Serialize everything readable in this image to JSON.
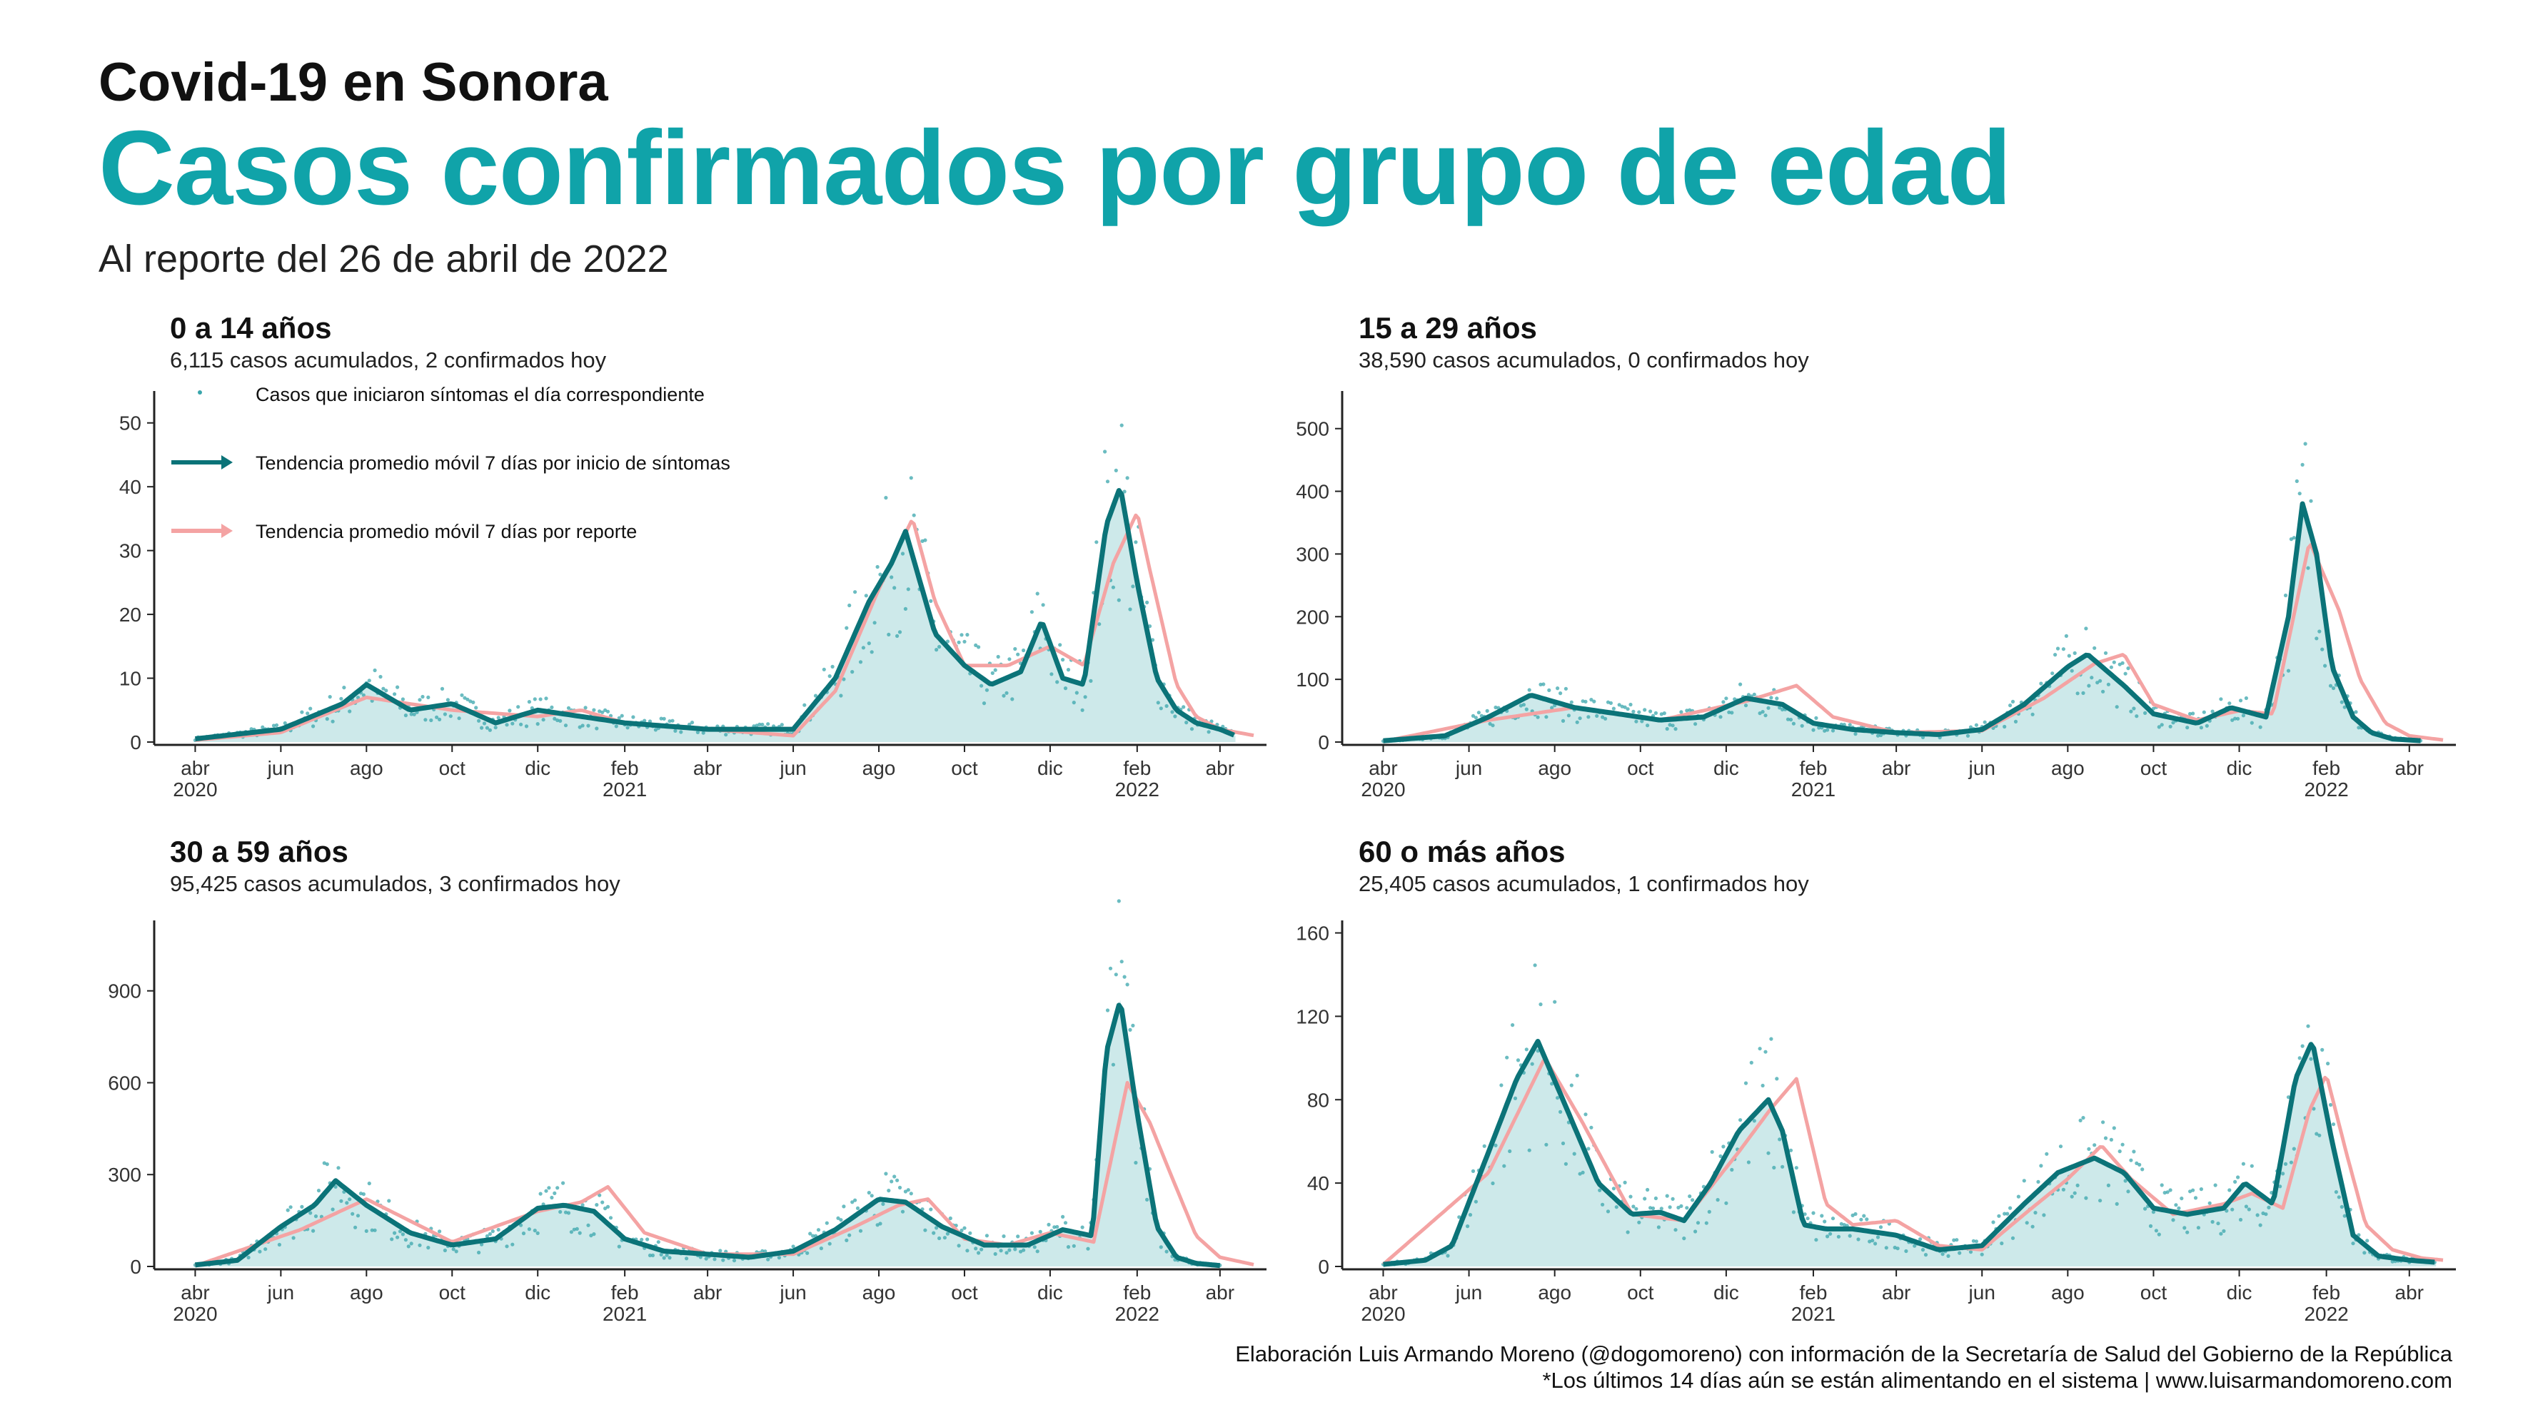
{
  "header": {
    "kicker": "Covid-19 en Sonora",
    "title": "Casos confirmados por grupo de edad",
    "subtitle": "Al reporte del 26 de abril de 2022"
  },
  "legend": {
    "points": "Casos que iniciaron síntomas el día correspondiente",
    "onset": "Tendencia promedio móvil 7 días por inicio de síntomas",
    "report": "Tendencia promedio móvil 7 días por reporte"
  },
  "colors": {
    "accent": "#10a3a9",
    "onset_line": "#0b7378",
    "report_line": "#f4a3a3",
    "area_fill": "#cde9ea",
    "points": "#3aa6ac"
  },
  "x_axis": {
    "ticks": [
      {
        "date": "2020-04-01",
        "label": "abr",
        "year": "2020"
      },
      {
        "date": "2020-06-01",
        "label": "jun",
        "year": ""
      },
      {
        "date": "2020-08-01",
        "label": "ago",
        "year": ""
      },
      {
        "date": "2020-10-01",
        "label": "oct",
        "year": ""
      },
      {
        "date": "2020-12-01",
        "label": "dic",
        "year": ""
      },
      {
        "date": "2021-02-01",
        "label": "feb",
        "year": "2021"
      },
      {
        "date": "2021-04-01",
        "label": "abr",
        "year": ""
      },
      {
        "date": "2021-06-01",
        "label": "jun",
        "year": ""
      },
      {
        "date": "2021-08-01",
        "label": "ago",
        "year": ""
      },
      {
        "date": "2021-10-01",
        "label": "oct",
        "year": ""
      },
      {
        "date": "2021-12-01",
        "label": "dic",
        "year": ""
      },
      {
        "date": "2022-02-01",
        "label": "feb",
        "year": "2022"
      },
      {
        "date": "2022-04-01",
        "label": "abr",
        "year": ""
      }
    ],
    "range": [
      "2020-03-15",
      "2022-04-26"
    ]
  },
  "chart_data": [
    {
      "type": "line",
      "title": "0 a 14 años",
      "subtitle": "6,115 casos acumulados, 2 confirmados hoy",
      "ylim": [
        0,
        55
      ],
      "yticks": [
        0,
        10,
        20,
        30,
        40,
        50
      ],
      "series": [
        {
          "name": "Tendencia promedio móvil 7 días por inicio de síntomas",
          "x": [
            "2020-04-01",
            "2020-06-01",
            "2020-07-15",
            "2020-08-01",
            "2020-09-01",
            "2020-10-01",
            "2020-11-01",
            "2020-12-01",
            "2021-01-01",
            "2021-02-01",
            "2021-04-01",
            "2021-06-01",
            "2021-07-01",
            "2021-07-25",
            "2021-08-10",
            "2021-08-20",
            "2021-09-10",
            "2021-10-01",
            "2021-10-20",
            "2021-11-10",
            "2021-11-25",
            "2021-12-10",
            "2021-12-25",
            "2022-01-10",
            "2022-01-20",
            "2022-02-01",
            "2022-02-15",
            "2022-03-01",
            "2022-03-15",
            "2022-04-01",
            "2022-04-12"
          ],
          "y": [
            0.5,
            2,
            6,
            9,
            5,
            6,
            3,
            5,
            4,
            3,
            2,
            2,
            10,
            22,
            28,
            33,
            17,
            12,
            9,
            11,
            19,
            10,
            9,
            34,
            40,
            25,
            10,
            5,
            3,
            2,
            1
          ]
        },
        {
          "name": "Tendencia promedio móvil 7 días por reporte",
          "x": [
            "2020-04-01",
            "2020-06-01",
            "2020-08-01",
            "2020-10-01",
            "2020-12-01",
            "2021-01-01",
            "2021-02-01",
            "2021-04-01",
            "2021-06-01",
            "2021-07-01",
            "2021-08-01",
            "2021-08-25",
            "2021-09-10",
            "2021-10-01",
            "2021-11-01",
            "2021-12-01",
            "2021-12-25",
            "2022-01-15",
            "2022-02-01",
            "2022-02-10",
            "2022-03-01",
            "2022-03-15",
            "2022-04-01",
            "2022-04-26"
          ],
          "y": [
            0.3,
            1.5,
            7,
            5,
            4,
            5,
            3,
            2,
            1,
            8,
            24,
            35,
            22,
            12,
            12,
            15,
            12,
            28,
            36,
            27,
            9,
            4,
            2,
            1
          ]
        }
      ]
    },
    {
      "type": "line",
      "title": "15 a 29 años",
      "subtitle": "38,590 casos acumulados, 0 confirmados hoy",
      "ylim": [
        0,
        560
      ],
      "yticks": [
        0,
        100,
        200,
        300,
        400,
        500
      ],
      "series": [
        {
          "name": "Tendencia promedio móvil 7 días por inicio de síntomas",
          "x": [
            "2020-04-01",
            "2020-05-15",
            "2020-06-15",
            "2020-07-15",
            "2020-08-15",
            "2020-09-15",
            "2020-10-15",
            "2020-11-15",
            "2020-12-15",
            "2021-01-10",
            "2021-02-01",
            "2021-03-01",
            "2021-04-01",
            "2021-05-01",
            "2021-06-01",
            "2021-07-01",
            "2021-08-01",
            "2021-08-15",
            "2021-09-10",
            "2021-10-01",
            "2021-11-01",
            "2021-11-25",
            "2021-12-20",
            "2022-01-05",
            "2022-01-15",
            "2022-01-25",
            "2022-02-05",
            "2022-02-20",
            "2022-03-05",
            "2022-03-20",
            "2022-04-10"
          ],
          "y": [
            2,
            10,
            40,
            75,
            55,
            45,
            35,
            40,
            70,
            60,
            30,
            20,
            15,
            12,
            20,
            60,
            120,
            140,
            90,
            45,
            30,
            55,
            40,
            200,
            380,
            300,
            120,
            40,
            15,
            5,
            2
          ]
        },
        {
          "name": "Tendencia promedio móvil 7 días por reporte",
          "x": [
            "2020-04-01",
            "2020-06-15",
            "2020-08-15",
            "2020-10-15",
            "2020-12-15",
            "2021-01-20",
            "2021-02-15",
            "2021-04-01",
            "2021-06-01",
            "2021-07-15",
            "2021-08-20",
            "2021-09-10",
            "2021-10-01",
            "2021-11-01",
            "2021-12-01",
            "2021-12-25",
            "2022-01-20",
            "2022-02-10",
            "2022-02-25",
            "2022-03-15",
            "2022-04-01",
            "2022-04-26"
          ],
          "y": [
            1,
            35,
            55,
            35,
            65,
            90,
            40,
            15,
            18,
            70,
            125,
            140,
            60,
            35,
            50,
            45,
            320,
            210,
            100,
            30,
            10,
            3
          ]
        }
      ]
    },
    {
      "type": "line",
      "title": "30 a 59 años",
      "subtitle": "95,425 casos acumulados, 3 confirmados hoy",
      "ylim": [
        0,
        1130
      ],
      "yticks": [
        0,
        300,
        600,
        900
      ],
      "series": [
        {
          "name": "Tendencia promedio móvil 7 días por inicio de síntomas",
          "x": [
            "2020-04-01",
            "2020-05-01",
            "2020-06-01",
            "2020-06-25",
            "2020-07-10",
            "2020-08-01",
            "2020-09-01",
            "2020-10-01",
            "2020-11-01",
            "2020-12-01",
            "2020-12-20",
            "2021-01-10",
            "2021-02-01",
            "2021-03-01",
            "2021-04-01",
            "2021-05-01",
            "2021-06-01",
            "2021-07-01",
            "2021-08-01",
            "2021-08-20",
            "2021-09-15",
            "2021-10-15",
            "2021-11-15",
            "2021-12-10",
            "2021-12-31",
            "2022-01-10",
            "2022-01-20",
            "2022-02-01",
            "2022-02-15",
            "2022-03-01",
            "2022-03-15",
            "2022-04-01"
          ],
          "y": [
            5,
            20,
            130,
            200,
            280,
            200,
            110,
            70,
            90,
            190,
            200,
            180,
            90,
            50,
            40,
            30,
            50,
            120,
            220,
            210,
            130,
            70,
            70,
            120,
            100,
            700,
            870,
            500,
            130,
            30,
            10,
            3
          ]
        },
        {
          "name": "Tendencia promedio móvil 7 días por reporte",
          "x": [
            "2020-04-01",
            "2020-06-15",
            "2020-08-01",
            "2020-10-01",
            "2020-12-01",
            "2021-01-01",
            "2021-01-20",
            "2021-02-15",
            "2021-04-01",
            "2021-06-01",
            "2021-07-15",
            "2021-08-15",
            "2021-09-05",
            "2021-10-01",
            "2021-11-01",
            "2021-12-01",
            "2022-01-01",
            "2022-01-25",
            "2022-02-10",
            "2022-02-25",
            "2022-03-15",
            "2022-04-01",
            "2022-04-26"
          ],
          "y": [
            2,
            120,
            220,
            80,
            180,
            210,
            260,
            110,
            40,
            40,
            130,
            200,
            220,
            90,
            70,
            110,
            80,
            600,
            470,
            300,
            100,
            30,
            5
          ]
        }
      ]
    },
    {
      "type": "line",
      "title": "60 o más años",
      "subtitle": "25,405 casos acumulados, 1 confirmados hoy",
      "ylim": [
        0,
        166
      ],
      "yticks": [
        0,
        40,
        80,
        120,
        160
      ],
      "series": [
        {
          "name": "Tendencia promedio móvil 7 días por inicio de síntomas",
          "x": [
            "2020-04-01",
            "2020-05-01",
            "2020-05-20",
            "2020-06-15",
            "2020-07-05",
            "2020-07-20",
            "2020-08-10",
            "2020-09-01",
            "2020-09-25",
            "2020-10-15",
            "2020-11-01",
            "2020-11-20",
            "2020-12-10",
            "2020-12-31",
            "2021-01-10",
            "2021-01-25",
            "2021-02-10",
            "2021-03-01",
            "2021-04-01",
            "2021-05-01",
            "2021-06-01",
            "2021-07-01",
            "2021-07-25",
            "2021-08-20",
            "2021-09-10",
            "2021-10-01",
            "2021-10-25",
            "2021-11-20",
            "2021-12-05",
            "2021-12-25",
            "2022-01-10",
            "2022-01-22",
            "2022-02-05",
            "2022-02-20",
            "2022-03-10",
            "2022-04-01",
            "2022-04-20"
          ],
          "y": [
            1,
            3,
            10,
            55,
            90,
            108,
            75,
            40,
            25,
            26,
            22,
            40,
            65,
            80,
            65,
            20,
            18,
            18,
            15,
            8,
            10,
            30,
            45,
            52,
            45,
            28,
            25,
            28,
            40,
            30,
            90,
            108,
            60,
            15,
            5,
            3,
            2
          ]
        },
        {
          "name": "Tendencia promedio móvil 7 días por reporte",
          "x": [
            "2020-04-01",
            "2020-06-15",
            "2020-07-25",
            "2020-08-20",
            "2020-09-25",
            "2020-11-01",
            "2020-12-10",
            "2021-01-01",
            "2021-01-20",
            "2021-02-10",
            "2021-03-01",
            "2021-04-01",
            "2021-05-01",
            "2021-06-01",
            "2021-07-01",
            "2021-08-01",
            "2021-08-25",
            "2021-09-15",
            "2021-10-15",
            "2021-11-20",
            "2021-12-10",
            "2022-01-01",
            "2022-01-20",
            "2022-02-01",
            "2022-02-15",
            "2022-03-01",
            "2022-03-20",
            "2022-04-10",
            "2022-04-26"
          ],
          "y": [
            1,
            45,
            100,
            70,
            25,
            22,
            55,
            75,
            90,
            30,
            20,
            22,
            10,
            8,
            25,
            42,
            58,
            42,
            25,
            30,
            35,
            28,
            75,
            92,
            55,
            20,
            8,
            4,
            3
          ]
        }
      ]
    }
  ],
  "footer": {
    "line1": "Elaboración Luis Armando Moreno (@dogomoreno) con información de la Secretaría de Salud del Gobierno de la República",
    "line2": "*Los últimos 14 días aún se están alimentando en el sistema | www.luisarmandomoreno.com"
  }
}
